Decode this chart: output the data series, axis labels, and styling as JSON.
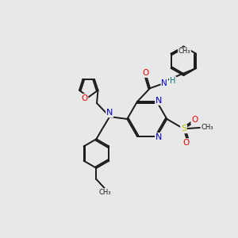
{
  "bg_color": "#e8e8e8",
  "bond_color": "#1a1a1a",
  "bond_width": 1.4,
  "dbo": 0.06,
  "atom_colors": {
    "N": "#0000cc",
    "O": "#ee0000",
    "S": "#bbbb00",
    "H": "#007777",
    "C": "#1a1a1a"
  },
  "xlim": [
    0,
    10
  ],
  "ylim": [
    0,
    10
  ]
}
